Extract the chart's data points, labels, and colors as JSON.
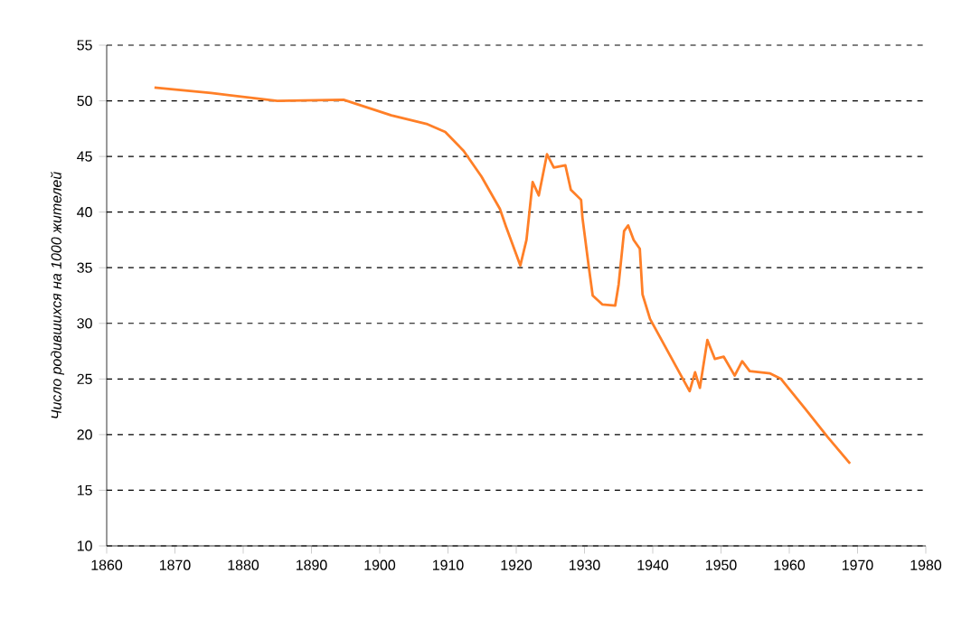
{
  "chart_data": {
    "type": "line",
    "ylabel": "Число родившихся на 1000 жителей",
    "x": [
      1867,
      1875.3,
      1885,
      1894.7,
      1901.7,
      1907,
      1909.6,
      1912.3,
      1914.9,
      1917.6,
      1918.5,
      1920.6,
      1921.5,
      1922.4,
      1923.3,
      1924.5,
      1925.5,
      1927.2,
      1928,
      1929.5,
      1929.7,
      1930.6,
      1931.2,
      1932.6,
      1934.5,
      1935,
      1935.8,
      1936.4,
      1937.2,
      1938.1,
      1938.5,
      1939.6,
      1945.4,
      1946.2,
      1946.9,
      1948,
      1949.1,
      1950.4,
      1952,
      1953.1,
      1954.2,
      1957.2,
      1958.8,
      1962.5,
      1965.6,
      1968.9
    ],
    "series": [
      {
        "color": "#ff7f27",
        "values": [
          51.2,
          50.7,
          50,
          50.1,
          48.7,
          47.9,
          47.2,
          45.5,
          43.2,
          40.3,
          38.7,
          35.2,
          37.5,
          42.7,
          41.5,
          45.2,
          44,
          44.2,
          42,
          41.1,
          39.5,
          35.2,
          32.5,
          31.7,
          31.6,
          33.5,
          38.3,
          38.8,
          37.5,
          36.7,
          32.6,
          30.4,
          23.9,
          25.6,
          24.2,
          28.5,
          26.8,
          27,
          25.3,
          26.6,
          25.7,
          25.5,
          25,
          22.2,
          19.8,
          17.4
        ]
      }
    ],
    "xlim": [
      1860,
      1980
    ],
    "xticks": [
      1860,
      1870,
      1880,
      1890,
      1900,
      1910,
      1920,
      1930,
      1940,
      1950,
      1960,
      1970,
      1980
    ],
    "ylim": [
      10,
      55
    ],
    "yticks": [
      10,
      15,
      20,
      25,
      30,
      35,
      40,
      45,
      50,
      55
    ],
    "grid": "y",
    "marker": "none",
    "line_style": "solid"
  }
}
